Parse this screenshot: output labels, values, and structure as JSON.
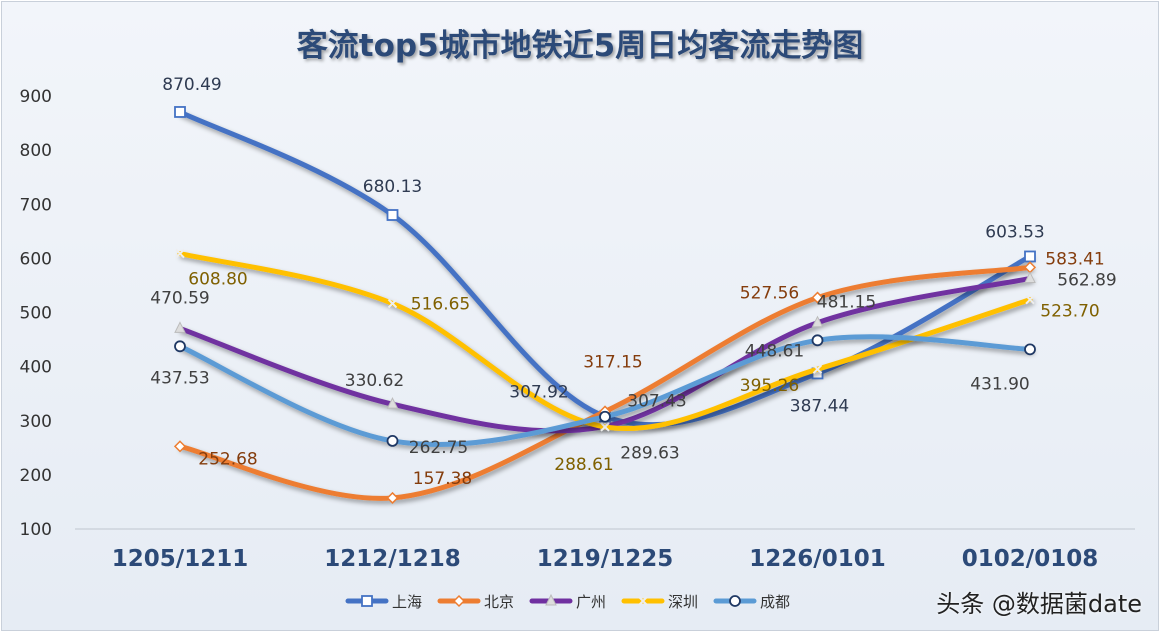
{
  "chart_data": {
    "type": "line",
    "title": "客流top5城市地铁近5周日均客流走势图",
    "categories": [
      "1205/1211",
      "1212/1218",
      "1219/1225",
      "1226/0101",
      "0102/0108"
    ],
    "ylim": [
      100,
      900
    ],
    "yticks": [
      100,
      200,
      300,
      400,
      500,
      600,
      700,
      800,
      900
    ],
    "grid": false,
    "legend": "bottom",
    "smooth": true,
    "series": [
      {
        "name": "上海",
        "values": [
          870.49,
          680.13,
          307.92,
          387.44,
          603.53
        ],
        "color": "#4472C4",
        "label_color": "#2f3b52",
        "marker": "square"
      },
      {
        "name": "北京",
        "values": [
          252.68,
          157.38,
          317.15,
          527.56,
          583.41
        ],
        "color": "#ED7D31",
        "label_color": "#843C0C",
        "marker": "diamond"
      },
      {
        "name": "广州",
        "values": [
          470.59,
          330.62,
          289.63,
          481.15,
          562.89
        ],
        "color": "#7030A0",
        "label_color": "#404040",
        "marker": "triangle"
      },
      {
        "name": "深圳",
        "values": [
          608.8,
          516.65,
          288.61,
          395.26,
          523.7
        ],
        "color": "#FFC000",
        "label_color": "#7F6000",
        "marker": "x"
      },
      {
        "name": "成都",
        "values": [
          437.53,
          262.75,
          307.43,
          448.61,
          431.9
        ],
        "color": "#5B9BD5",
        "label_color": "#404040",
        "marker": "circle"
      }
    ]
  },
  "watermark": "头条 @数据菌date"
}
